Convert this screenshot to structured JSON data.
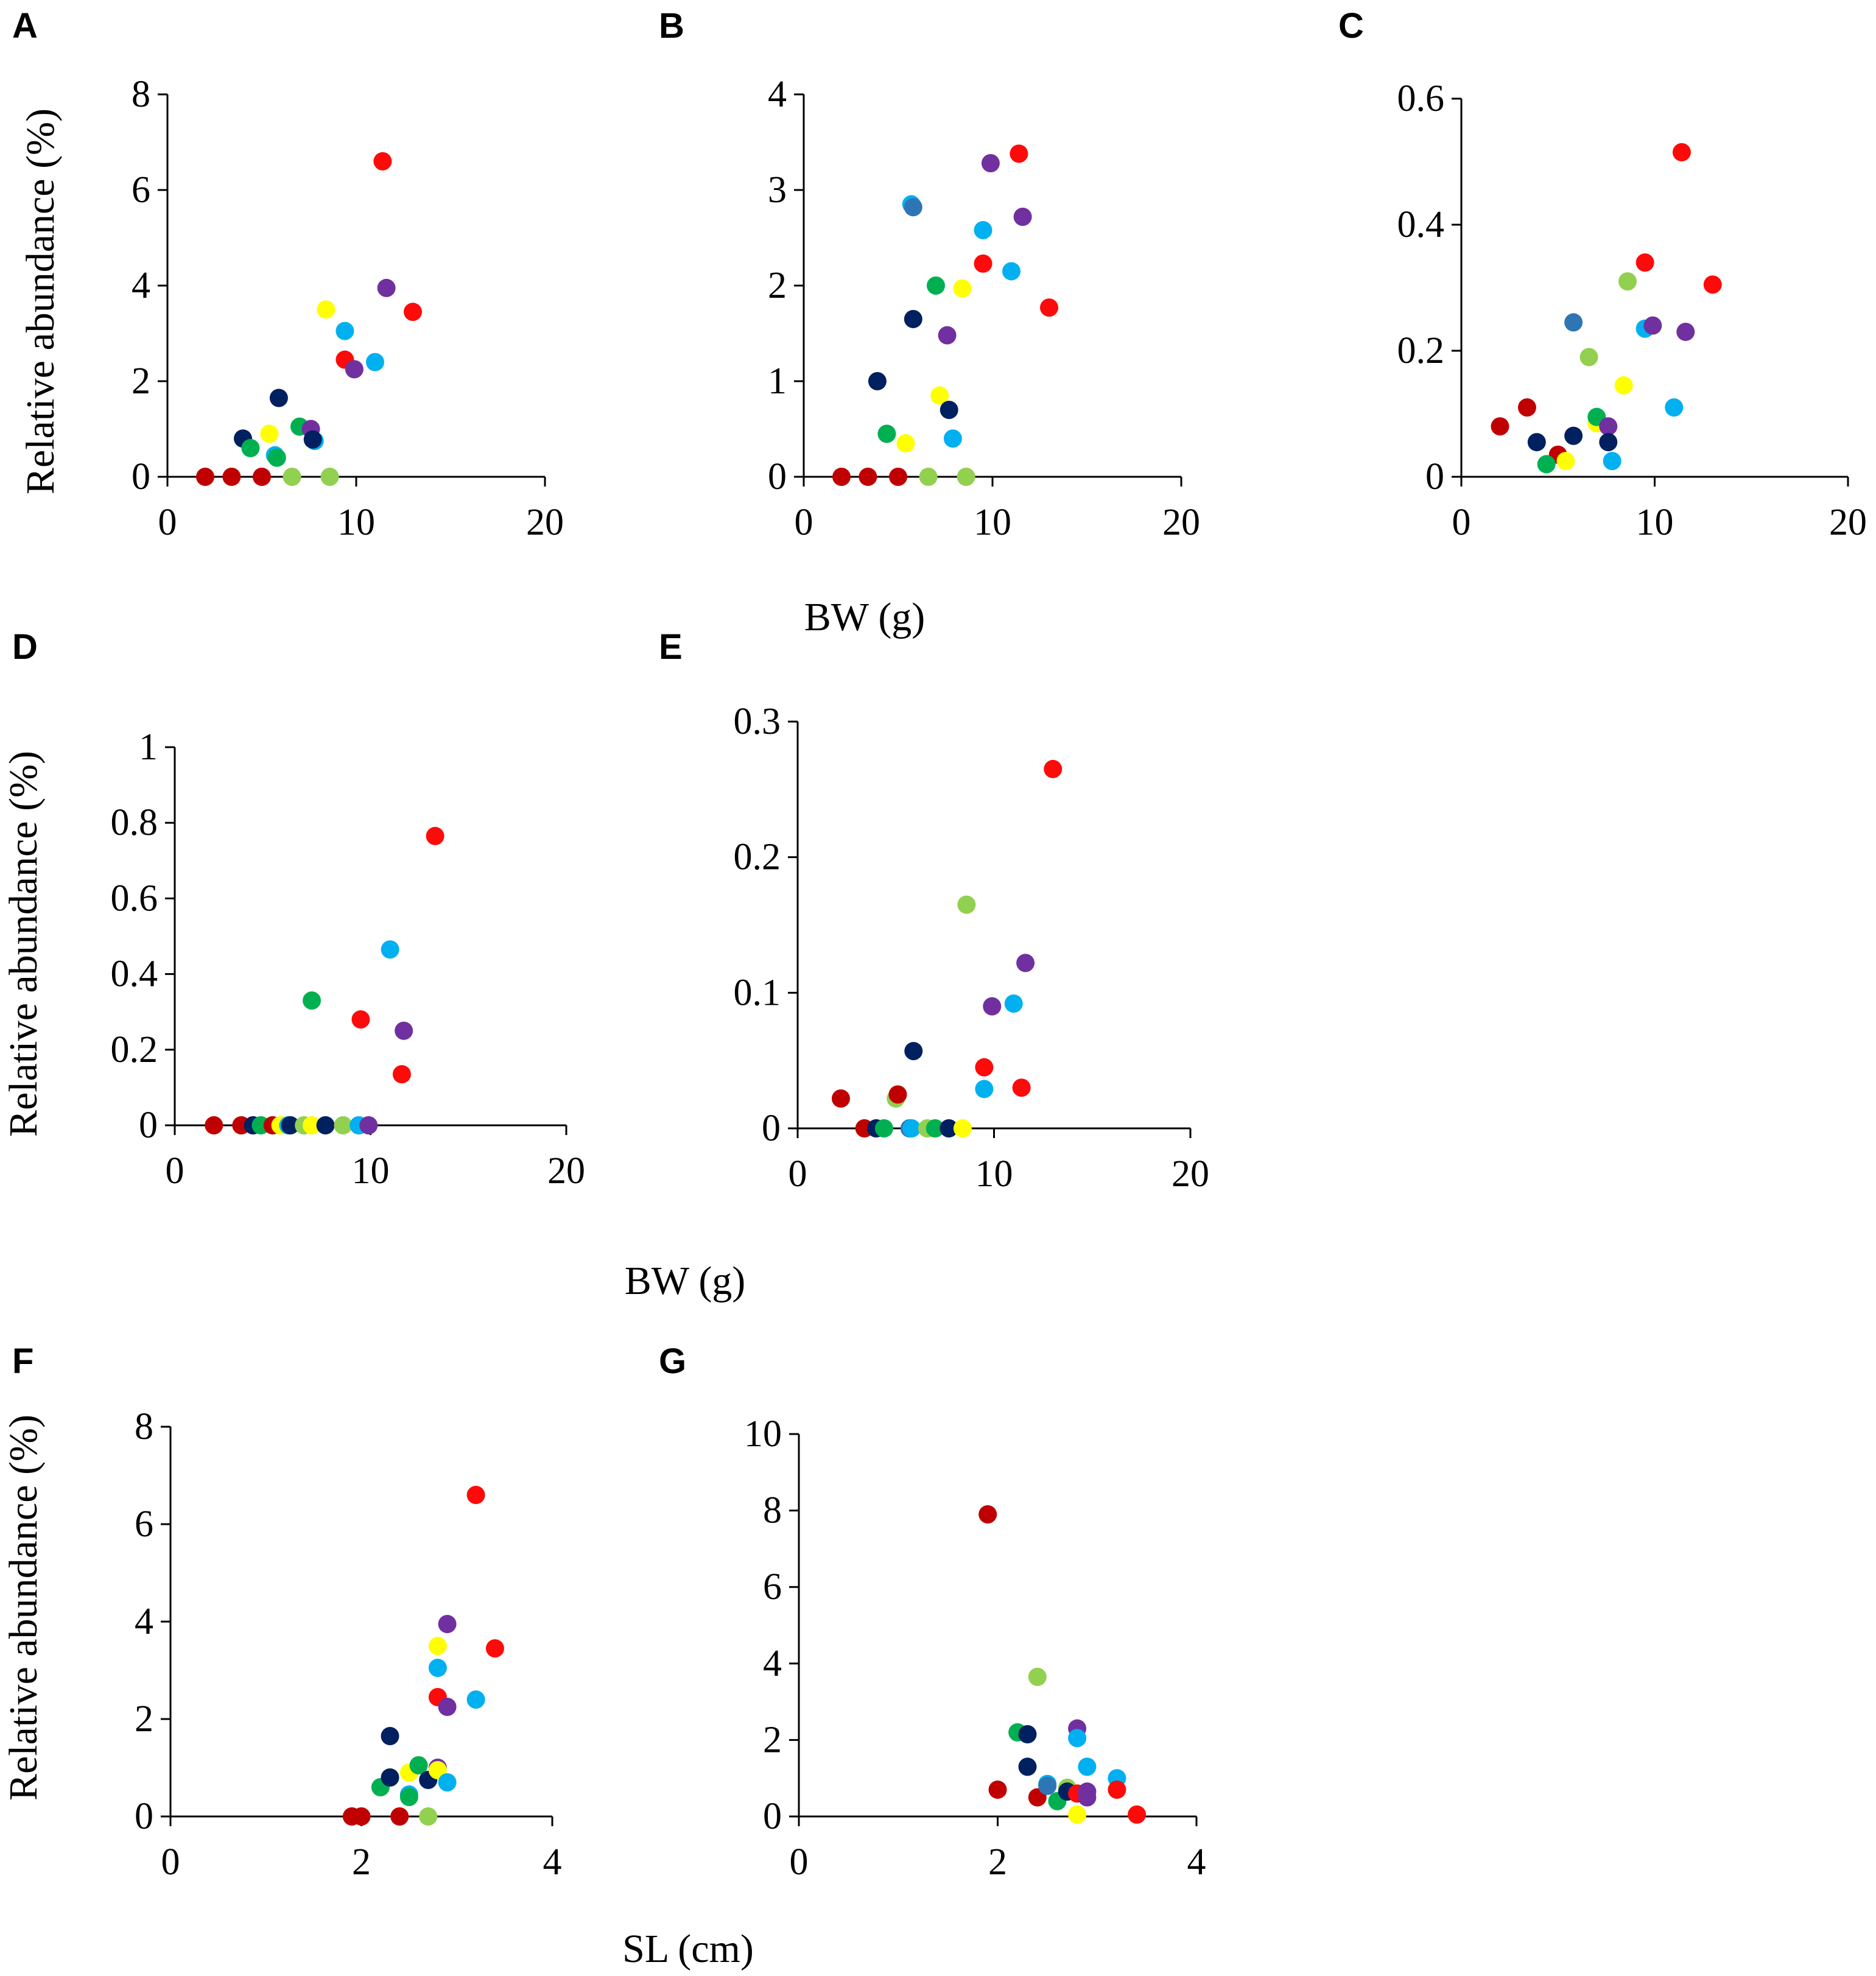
{
  "colors": {
    "red": "#ff0a0a",
    "darkred": "#c00000",
    "navy": "#002060",
    "purple": "#7030a0",
    "sky": "#00b0f0",
    "green": "#00b050",
    "lightgreen": "#92d050",
    "yellow": "#ffff00",
    "teal": "#2e75b6"
  },
  "shared_titles": {
    "ylabel_top": "Relative abundance (%)",
    "ylabel_middle": "Relative abundance (%)",
    "ylabel_bottom": "Relative abundance (%)",
    "xlabel_top": "BW (g)",
    "xlabel_middle": "BW (g)",
    "xlabel_bottom": "SL (cm)"
  },
  "chart_data": [
    {
      "type": "scatter",
      "panel": "A",
      "xlim": [
        0,
        20
      ],
      "ylim": [
        0,
        8
      ],
      "xticks": [
        "0",
        "10",
        "20"
      ],
      "yticks": [
        "0",
        "2",
        "4",
        "6",
        "8"
      ],
      "xlabel": "BW (g)",
      "ylabel": "Relative abundance (%)",
      "grid": false,
      "points": [
        {
          "x": 2.0,
          "y": 0,
          "color": "darkred"
        },
        {
          "x": 3.4,
          "y": 0,
          "color": "darkred"
        },
        {
          "x": 5.0,
          "y": 0,
          "color": "darkred"
        },
        {
          "x": 4.0,
          "y": 0.8,
          "color": "navy"
        },
        {
          "x": 4.4,
          "y": 0.6,
          "color": "green"
        },
        {
          "x": 5.4,
          "y": 0.9,
          "color": "yellow"
        },
        {
          "x": 5.7,
          "y": 0.45,
          "color": "sky"
        },
        {
          "x": 5.8,
          "y": 0.4,
          "color": "green"
        },
        {
          "x": 5.9,
          "y": 1.65,
          "color": "navy"
        },
        {
          "x": 6.6,
          "y": 0,
          "color": "lightgreen"
        },
        {
          "x": 7.0,
          "y": 1.05,
          "color": "green"
        },
        {
          "x": 7.6,
          "y": 1.0,
          "color": "purple"
        },
        {
          "x": 7.8,
          "y": 0.75,
          "color": "sky"
        },
        {
          "x": 7.7,
          "y": 0.78,
          "color": "navy"
        },
        {
          "x": 8.4,
          "y": 3.5,
          "color": "yellow"
        },
        {
          "x": 8.6,
          "y": 0,
          "color": "lightgreen"
        },
        {
          "x": 9.4,
          "y": 3.05,
          "color": "sky"
        },
        {
          "x": 9.4,
          "y": 2.45,
          "color": "red"
        },
        {
          "x": 9.9,
          "y": 2.25,
          "color": "purple"
        },
        {
          "x": 11.0,
          "y": 2.4,
          "color": "sky"
        },
        {
          "x": 11.4,
          "y": 6.6,
          "color": "red"
        },
        {
          "x": 11.6,
          "y": 3.95,
          "color": "purple"
        },
        {
          "x": 13.0,
          "y": 3.45,
          "color": "red"
        }
      ]
    },
    {
      "type": "scatter",
      "panel": "B",
      "xlim": [
        0,
        20
      ],
      "ylim": [
        0,
        4
      ],
      "xticks": [
        "0",
        "10",
        "20"
      ],
      "yticks": [
        "0",
        "1",
        "2",
        "3",
        "4"
      ],
      "xlabel": "BW (g)",
      "ylabel": "Relative abundance (%)",
      "grid": false,
      "points": [
        {
          "x": 2.0,
          "y": 0,
          "color": "darkred"
        },
        {
          "x": 3.4,
          "y": 0,
          "color": "darkred"
        },
        {
          "x": 5.0,
          "y": 0,
          "color": "darkred"
        },
        {
          "x": 3.9,
          "y": 1.0,
          "color": "navy"
        },
        {
          "x": 4.4,
          "y": 0.45,
          "color": "green"
        },
        {
          "x": 5.4,
          "y": 0.35,
          "color": "yellow"
        },
        {
          "x": 5.7,
          "y": 2.85,
          "color": "sky"
        },
        {
          "x": 5.8,
          "y": 2.82,
          "color": "teal"
        },
        {
          "x": 5.8,
          "y": 1.65,
          "color": "navy"
        },
        {
          "x": 6.6,
          "y": 0,
          "color": "lightgreen"
        },
        {
          "x": 7.0,
          "y": 2.0,
          "color": "green"
        },
        {
          "x": 7.2,
          "y": 0.85,
          "color": "yellow"
        },
        {
          "x": 7.6,
          "y": 1.48,
          "color": "purple"
        },
        {
          "x": 7.7,
          "y": 0.7,
          "color": "navy"
        },
        {
          "x": 7.9,
          "y": 0.4,
          "color": "sky"
        },
        {
          "x": 8.4,
          "y": 1.97,
          "color": "yellow"
        },
        {
          "x": 8.6,
          "y": 0,
          "color": "lightgreen"
        },
        {
          "x": 9.5,
          "y": 2.58,
          "color": "sky"
        },
        {
          "x": 9.5,
          "y": 2.23,
          "color": "red"
        },
        {
          "x": 9.9,
          "y": 3.28,
          "color": "purple"
        },
        {
          "x": 11.0,
          "y": 2.15,
          "color": "sky"
        },
        {
          "x": 11.4,
          "y": 3.38,
          "color": "red"
        },
        {
          "x": 11.6,
          "y": 2.72,
          "color": "purple"
        },
        {
          "x": 13.0,
          "y": 1.77,
          "color": "red"
        }
      ]
    },
    {
      "type": "scatter",
      "panel": "C",
      "xlim": [
        0,
        20
      ],
      "ylim": [
        0,
        0.6
      ],
      "xticks": [
        "0",
        "10",
        "20"
      ],
      "yticks": [
        "0",
        "0.2",
        "0.4",
        "0.6"
      ],
      "xlabel": "BW (g)",
      "ylabel": "Relative abundance (%)",
      "grid": false,
      "points": [
        {
          "x": 2.0,
          "y": 0.08,
          "color": "darkred"
        },
        {
          "x": 3.4,
          "y": 0.11,
          "color": "darkred"
        },
        {
          "x": 5.0,
          "y": 0.035,
          "color": "darkred"
        },
        {
          "x": 3.9,
          "y": 0.055,
          "color": "navy"
        },
        {
          "x": 4.4,
          "y": 0.02,
          "color": "green"
        },
        {
          "x": 5.4,
          "y": 0.025,
          "color": "yellow"
        },
        {
          "x": 5.8,
          "y": 0.245,
          "color": "teal"
        },
        {
          "x": 5.8,
          "y": 0.065,
          "color": "navy"
        },
        {
          "x": 6.6,
          "y": 0.19,
          "color": "lightgreen"
        },
        {
          "x": 7.0,
          "y": 0.085,
          "color": "yellow"
        },
        {
          "x": 7.0,
          "y": 0.095,
          "color": "green"
        },
        {
          "x": 7.6,
          "y": 0.08,
          "color": "purple"
        },
        {
          "x": 7.6,
          "y": 0.055,
          "color": "navy"
        },
        {
          "x": 7.8,
          "y": 0.025,
          "color": "sky"
        },
        {
          "x": 8.4,
          "y": 0.145,
          "color": "yellow"
        },
        {
          "x": 8.6,
          "y": 0.31,
          "color": "lightgreen"
        },
        {
          "x": 9.5,
          "y": 0.235,
          "color": "sky"
        },
        {
          "x": 9.5,
          "y": 0.34,
          "color": "red"
        },
        {
          "x": 9.9,
          "y": 0.24,
          "color": "purple"
        },
        {
          "x": 11.0,
          "y": 0.11,
          "color": "sky"
        },
        {
          "x": 11.4,
          "y": 0.515,
          "color": "red"
        },
        {
          "x": 11.6,
          "y": 0.23,
          "color": "purple"
        },
        {
          "x": 13.0,
          "y": 0.305,
          "color": "red"
        }
      ]
    },
    {
      "type": "scatter",
      "panel": "D",
      "xlim": [
        0,
        20
      ],
      "ylim": [
        0,
        1
      ],
      "xticks": [
        "0",
        "10",
        "20"
      ],
      "yticks": [
        "0",
        "0.2",
        "0.4",
        "0.6",
        "0.8",
        "1"
      ],
      "xlabel": "BW (g)",
      "ylabel": "Relative abundance (%)",
      "grid": false,
      "points": [
        {
          "x": 2.0,
          "y": 0,
          "color": "darkred"
        },
        {
          "x": 3.4,
          "y": 0,
          "color": "darkred"
        },
        {
          "x": 4.0,
          "y": 0,
          "color": "navy"
        },
        {
          "x": 4.4,
          "y": 0,
          "color": "green"
        },
        {
          "x": 5.0,
          "y": 0,
          "color": "darkred"
        },
        {
          "x": 5.4,
          "y": 0,
          "color": "yellow"
        },
        {
          "x": 5.8,
          "y": 0,
          "color": "sky"
        },
        {
          "x": 5.9,
          "y": 0,
          "color": "navy"
        },
        {
          "x": 6.6,
          "y": 0,
          "color": "lightgreen"
        },
        {
          "x": 7.0,
          "y": 0,
          "color": "yellow"
        },
        {
          "x": 7.0,
          "y": 0.33,
          "color": "green"
        },
        {
          "x": 7.7,
          "y": 0,
          "color": "navy"
        },
        {
          "x": 8.6,
          "y": 0,
          "color": "lightgreen"
        },
        {
          "x": 9.4,
          "y": 0,
          "color": "sky"
        },
        {
          "x": 9.5,
          "y": 0.28,
          "color": "red"
        },
        {
          "x": 9.9,
          "y": 0,
          "color": "purple"
        },
        {
          "x": 11.0,
          "y": 0.465,
          "color": "sky"
        },
        {
          "x": 11.6,
          "y": 0.135,
          "color": "red"
        },
        {
          "x": 11.7,
          "y": 0.25,
          "color": "purple"
        },
        {
          "x": 13.3,
          "y": 0.765,
          "color": "red"
        }
      ]
    },
    {
      "type": "scatter",
      "panel": "E",
      "xlim": [
        0,
        20
      ],
      "ylim": [
        0,
        0.3
      ],
      "xticks": [
        "0",
        "10",
        "20"
      ],
      "yticks": [
        "0",
        "0.1",
        "0.2",
        "0.3"
      ],
      "xlabel": "BW (g)",
      "ylabel": "Relative abundance (%)",
      "grid": false,
      "points": [
        {
          "x": 2.2,
          "y": 0.022,
          "color": "darkred"
        },
        {
          "x": 3.4,
          "y": 0,
          "color": "darkred"
        },
        {
          "x": 4.0,
          "y": 0,
          "color": "navy"
        },
        {
          "x": 4.4,
          "y": 0,
          "color": "green"
        },
        {
          "x": 5.0,
          "y": 0.022,
          "color": "lightgreen"
        },
        {
          "x": 5.1,
          "y": 0.025,
          "color": "darkred"
        },
        {
          "x": 5.7,
          "y": 0,
          "color": "teal"
        },
        {
          "x": 5.8,
          "y": 0,
          "color": "sky"
        },
        {
          "x": 5.9,
          "y": 0.057,
          "color": "navy"
        },
        {
          "x": 6.6,
          "y": 0,
          "color": "lightgreen"
        },
        {
          "x": 7.0,
          "y": 0,
          "color": "green"
        },
        {
          "x": 7.7,
          "y": 0,
          "color": "navy"
        },
        {
          "x": 8.4,
          "y": 0,
          "color": "yellow"
        },
        {
          "x": 8.6,
          "y": 0.165,
          "color": "lightgreen"
        },
        {
          "x": 9.5,
          "y": 0.029,
          "color": "sky"
        },
        {
          "x": 9.5,
          "y": 0.045,
          "color": "red"
        },
        {
          "x": 9.9,
          "y": 0.09,
          "color": "purple"
        },
        {
          "x": 11.0,
          "y": 0.092,
          "color": "sky"
        },
        {
          "x": 11.4,
          "y": 0.03,
          "color": "red"
        },
        {
          "x": 11.6,
          "y": 0.122,
          "color": "purple"
        },
        {
          "x": 13.0,
          "y": 0.265,
          "color": "red"
        }
      ]
    },
    {
      "type": "scatter",
      "panel": "F",
      "xlim": [
        0,
        4
      ],
      "ylim": [
        0,
        8
      ],
      "xticks": [
        "0",
        "2",
        "4"
      ],
      "yticks": [
        "0",
        "2",
        "4",
        "6",
        "8"
      ],
      "xlabel": "SL (cm)",
      "ylabel": "Relative abundance (%)",
      "grid": false,
      "points": [
        {
          "x": 1.9,
          "y": 0,
          "color": "darkred"
        },
        {
          "x": 2.0,
          "y": 0,
          "color": "darkred"
        },
        {
          "x": 2.4,
          "y": 0,
          "color": "darkred"
        },
        {
          "x": 2.2,
          "y": 0.6,
          "color": "green"
        },
        {
          "x": 2.3,
          "y": 0.8,
          "color": "navy"
        },
        {
          "x": 2.3,
          "y": 1.65,
          "color": "navy"
        },
        {
          "x": 2.5,
          "y": 0.45,
          "color": "sky"
        },
        {
          "x": 2.5,
          "y": 0.4,
          "color": "green"
        },
        {
          "x": 2.5,
          "y": 0.9,
          "color": "yellow"
        },
        {
          "x": 2.6,
          "y": 1.05,
          "color": "green"
        },
        {
          "x": 2.7,
          "y": 0.75,
          "color": "navy"
        },
        {
          "x": 2.7,
          "y": 0,
          "color": "lightgreen"
        },
        {
          "x": 2.8,
          "y": 1.0,
          "color": "purple"
        },
        {
          "x": 2.8,
          "y": 0.95,
          "color": "yellow"
        },
        {
          "x": 2.8,
          "y": 3.5,
          "color": "yellow"
        },
        {
          "x": 2.8,
          "y": 3.05,
          "color": "sky"
        },
        {
          "x": 2.8,
          "y": 2.45,
          "color": "red"
        },
        {
          "x": 2.9,
          "y": 0.7,
          "color": "sky"
        },
        {
          "x": 2.9,
          "y": 2.25,
          "color": "purple"
        },
        {
          "x": 2.9,
          "y": 3.95,
          "color": "purple"
        },
        {
          "x": 3.2,
          "y": 2.4,
          "color": "sky"
        },
        {
          "x": 3.2,
          "y": 6.6,
          "color": "red"
        },
        {
          "x": 3.4,
          "y": 3.45,
          "color": "red"
        }
      ]
    },
    {
      "type": "scatter",
      "panel": "G",
      "xlim": [
        0,
        4
      ],
      "ylim": [
        0,
        10
      ],
      "xticks": [
        "0",
        "2",
        "4"
      ],
      "yticks": [
        "0",
        "2",
        "4",
        "6",
        "8",
        "10"
      ],
      "xlabel": "SL (cm)",
      "ylabel": "Relative abundance (%)",
      "grid": false,
      "points": [
        {
          "x": 1.9,
          "y": 7.9,
          "color": "darkred"
        },
        {
          "x": 2.0,
          "y": 0.7,
          "color": "darkred"
        },
        {
          "x": 2.2,
          "y": 2.2,
          "color": "green"
        },
        {
          "x": 2.3,
          "y": 2.15,
          "color": "navy"
        },
        {
          "x": 2.3,
          "y": 1.3,
          "color": "navy"
        },
        {
          "x": 2.4,
          "y": 0.5,
          "color": "darkred"
        },
        {
          "x": 2.4,
          "y": 3.65,
          "color": "lightgreen"
        },
        {
          "x": 2.5,
          "y": 0.85,
          "color": "sky"
        },
        {
          "x": 2.5,
          "y": 0.8,
          "color": "teal"
        },
        {
          "x": 2.6,
          "y": 0.4,
          "color": "green"
        },
        {
          "x": 2.7,
          "y": 0.75,
          "color": "lightgreen"
        },
        {
          "x": 2.7,
          "y": 0.65,
          "color": "navy"
        },
        {
          "x": 2.8,
          "y": 0.6,
          "color": "red"
        },
        {
          "x": 2.8,
          "y": 0.05,
          "color": "yellow"
        },
        {
          "x": 2.8,
          "y": 2.3,
          "color": "purple"
        },
        {
          "x": 2.8,
          "y": 2.05,
          "color": "sky"
        },
        {
          "x": 2.9,
          "y": 1.3,
          "color": "sky"
        },
        {
          "x": 2.9,
          "y": 0.5,
          "color": "purple"
        },
        {
          "x": 2.9,
          "y": 0.65,
          "color": "purple"
        },
        {
          "x": 3.2,
          "y": 1.0,
          "color": "sky"
        },
        {
          "x": 3.2,
          "y": 0.7,
          "color": "red"
        },
        {
          "x": 3.4,
          "y": 0.05,
          "color": "red"
        }
      ]
    }
  ]
}
